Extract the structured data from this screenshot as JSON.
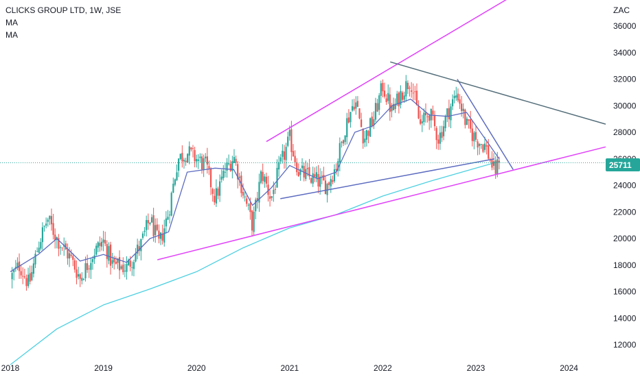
{
  "header": {
    "symbol_line": "CLICKS GROUP LTD, 1W, JSE",
    "indicator_1": "MA",
    "indicator_2": "MA"
  },
  "currency": "ZAC",
  "last_price": "25711",
  "colors": {
    "up": "#26a69a",
    "down": "#ef5350",
    "ma_fast": "#5c6bc0",
    "ma_slow": "#4dd0e1",
    "channel": "#e040fb",
    "triangle": "#5c6bc0",
    "resistance": "#546e7a"
  },
  "chart_data": {
    "type": "candlestick",
    "title": "CLICKS GROUP LTD, 1W, JSE",
    "xlabel": "",
    "ylabel": "ZAC",
    "x_ticks": [
      "2018",
      "2019",
      "2020",
      "2021",
      "2022",
      "2023",
      "2024"
    ],
    "y_ticks": [
      12000,
      14000,
      16000,
      18000,
      20000,
      22000,
      24000,
      26000,
      28000,
      30000,
      32000,
      34000,
      36000
    ],
    "xlim": [
      2018.0,
      2024.6
    ],
    "ylim": [
      11000,
      38000
    ],
    "grid": false,
    "last_close": 25711,
    "price_path": [
      {
        "t": 2018.0,
        "p": 17000
      },
      {
        "t": 2018.1,
        "p": 18000
      },
      {
        "t": 2018.2,
        "p": 16500
      },
      {
        "t": 2018.3,
        "p": 19500
      },
      {
        "t": 2018.4,
        "p": 21500
      },
      {
        "t": 2018.5,
        "p": 20000
      },
      {
        "t": 2018.65,
        "p": 18500
      },
      {
        "t": 2018.75,
        "p": 17000
      },
      {
        "t": 2018.9,
        "p": 19000
      },
      {
        "t": 2019.0,
        "p": 19800
      },
      {
        "t": 2019.1,
        "p": 18000
      },
      {
        "t": 2019.25,
        "p": 17800
      },
      {
        "t": 2019.4,
        "p": 19500
      },
      {
        "t": 2019.5,
        "p": 21500
      },
      {
        "t": 2019.6,
        "p": 19500
      },
      {
        "t": 2019.7,
        "p": 22000
      },
      {
        "t": 2019.8,
        "p": 26000
      },
      {
        "t": 2019.9,
        "p": 26500
      },
      {
        "t": 2020.0,
        "p": 26000
      },
      {
        "t": 2020.1,
        "p": 25500
      },
      {
        "t": 2020.2,
        "p": 23000
      },
      {
        "t": 2020.3,
        "p": 25000
      },
      {
        "t": 2020.4,
        "p": 26200
      },
      {
        "t": 2020.5,
        "p": 23500
      },
      {
        "t": 2020.6,
        "p": 21000
      },
      {
        "t": 2020.7,
        "p": 25000
      },
      {
        "t": 2020.8,
        "p": 23000
      },
      {
        "t": 2020.9,
        "p": 25500
      },
      {
        "t": 2021.0,
        "p": 27500
      },
      {
        "t": 2021.1,
        "p": 25000
      },
      {
        "t": 2021.25,
        "p": 24500
      },
      {
        "t": 2021.4,
        "p": 24000
      },
      {
        "t": 2021.5,
        "p": 25500
      },
      {
        "t": 2021.6,
        "p": 28500
      },
      {
        "t": 2021.7,
        "p": 30500
      },
      {
        "t": 2021.8,
        "p": 27500
      },
      {
        "t": 2021.9,
        "p": 29000
      },
      {
        "t": 2022.0,
        "p": 31500
      },
      {
        "t": 2022.1,
        "p": 29500
      },
      {
        "t": 2022.2,
        "p": 31000
      },
      {
        "t": 2022.3,
        "p": 32000
      },
      {
        "t": 2022.4,
        "p": 28500
      },
      {
        "t": 2022.5,
        "p": 29500
      },
      {
        "t": 2022.6,
        "p": 27500
      },
      {
        "t": 2022.7,
        "p": 29500
      },
      {
        "t": 2022.8,
        "p": 31000
      },
      {
        "t": 2022.9,
        "p": 28500
      },
      {
        "t": 2023.0,
        "p": 27500
      },
      {
        "t": 2023.1,
        "p": 27000
      },
      {
        "t": 2023.2,
        "p": 25000
      },
      {
        "t": 2023.25,
        "p": 25711
      }
    ],
    "ma_fast": [
      {
        "t": 2018.0,
        "p": 17500
      },
      {
        "t": 2018.3,
        "p": 18800
      },
      {
        "t": 2018.5,
        "p": 20000
      },
      {
        "t": 2018.75,
        "p": 18300
      },
      {
        "t": 2019.0,
        "p": 18800
      },
      {
        "t": 2019.25,
        "p": 18200
      },
      {
        "t": 2019.5,
        "p": 20000
      },
      {
        "t": 2019.7,
        "p": 20500
      },
      {
        "t": 2019.9,
        "p": 25000
      },
      {
        "t": 2020.2,
        "p": 25300
      },
      {
        "t": 2020.4,
        "p": 25200
      },
      {
        "t": 2020.6,
        "p": 22500
      },
      {
        "t": 2020.8,
        "p": 23800
      },
      {
        "t": 2021.0,
        "p": 25500
      },
      {
        "t": 2021.3,
        "p": 24500
      },
      {
        "t": 2021.5,
        "p": 25000
      },
      {
        "t": 2021.7,
        "p": 28000
      },
      {
        "t": 2021.9,
        "p": 28500
      },
      {
        "t": 2022.1,
        "p": 30000
      },
      {
        "t": 2022.3,
        "p": 30500
      },
      {
        "t": 2022.5,
        "p": 29300
      },
      {
        "t": 2022.7,
        "p": 29200
      },
      {
        "t": 2022.9,
        "p": 29500
      },
      {
        "t": 2023.1,
        "p": 27500
      },
      {
        "t": 2023.25,
        "p": 26000
      }
    ],
    "ma_slow": [
      {
        "t": 2018.0,
        "p": 10500
      },
      {
        "t": 2018.5,
        "p": 13200
      },
      {
        "t": 2019.0,
        "p": 15000
      },
      {
        "t": 2019.5,
        "p": 16200
      },
      {
        "t": 2020.0,
        "p": 17500
      },
      {
        "t": 2020.5,
        "p": 19300
      },
      {
        "t": 2021.0,
        "p": 20800
      },
      {
        "t": 2021.5,
        "p": 21800
      },
      {
        "t": 2022.0,
        "p": 23200
      },
      {
        "t": 2022.5,
        "p": 24300
      },
      {
        "t": 2023.0,
        "p": 25300
      },
      {
        "t": 2023.25,
        "p": 25800
      }
    ],
    "trendlines": [
      {
        "name": "channel-upper",
        "color_key": "channel",
        "from": {
          "t": 2020.75,
          "p": 27300
        },
        "to": {
          "t": 2023.45,
          "p": 38500
        }
      },
      {
        "name": "channel-lower",
        "color_key": "channel",
        "from": {
          "t": 2019.58,
          "p": 18400
        },
        "to": {
          "t": 2024.45,
          "p": 27000
        }
      },
      {
        "name": "triangle-support",
        "color_key": "triangle",
        "from": {
          "t": 2020.9,
          "p": 23000
        },
        "to": {
          "t": 2023.2,
          "p": 26000
        }
      },
      {
        "name": "triangle-resistance",
        "color_key": "triangle",
        "from": {
          "t": 2022.8,
          "p": 32000
        },
        "to": {
          "t": 2023.4,
          "p": 25200
        }
      },
      {
        "name": "long-resistance",
        "color_key": "resistance",
        "from": {
          "t": 2022.08,
          "p": 33300
        },
        "to": {
          "t": 2024.45,
          "p": 28500
        }
      }
    ]
  }
}
